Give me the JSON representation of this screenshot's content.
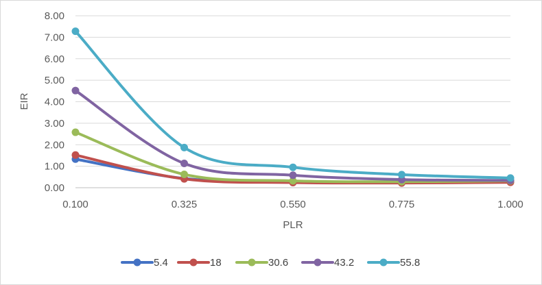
{
  "chart_data": {
    "type": "line",
    "title": "",
    "xlabel": "PLR",
    "ylabel": "EIR",
    "x": [
      0.1,
      0.325,
      0.55,
      0.775,
      1.0
    ],
    "x_tick_labels": [
      "0.100",
      "0.325",
      "0.550",
      "0.775",
      "1.000"
    ],
    "y_tick_labels": [
      "0.00",
      "1.00",
      "2.00",
      "3.00",
      "4.00",
      "5.00",
      "6.00",
      "7.00",
      "8.00"
    ],
    "ylim": [
      0,
      8
    ],
    "grid": true,
    "legend_position": "bottom",
    "series": [
      {
        "name": "5.4",
        "color": "#4472c4",
        "values": [
          1.33,
          0.43,
          0.26,
          0.27,
          0.3
        ]
      },
      {
        "name": "18",
        "color": "#c0504d",
        "values": [
          1.52,
          0.41,
          0.24,
          0.22,
          0.25
        ]
      },
      {
        "name": "30.6",
        "color": "#9bbb59",
        "values": [
          2.58,
          0.62,
          0.32,
          0.28,
          0.32
        ]
      },
      {
        "name": "43.2",
        "color": "#8064a2",
        "values": [
          4.52,
          1.13,
          0.58,
          0.38,
          0.34
        ]
      },
      {
        "name": "55.8",
        "color": "#4bacc6",
        "values": [
          7.28,
          1.87,
          0.95,
          0.61,
          0.45
        ]
      }
    ]
  }
}
